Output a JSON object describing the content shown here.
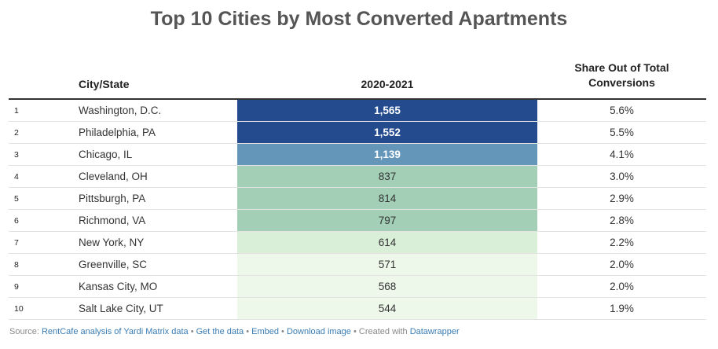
{
  "title": "Top 10 Cities by Most Converted Apartments",
  "table": {
    "headers": {
      "rank": "",
      "city": "City/State",
      "value": "2020-2021",
      "share_line1": "Share Out of Total",
      "share_line2": "Conversions"
    },
    "rows": [
      {
        "rank": "1",
        "city": "Washington, D.C.",
        "value": "1,565",
        "share": "5.6%"
      },
      {
        "rank": "2",
        "city": "Philadelphia, PA",
        "value": "1,552",
        "share": "5.5%"
      },
      {
        "rank": "3",
        "city": "Chicago, IL",
        "value": "1,139",
        "share": "4.1%"
      },
      {
        "rank": "4",
        "city": "Cleveland, OH",
        "value": "837",
        "share": "3.0%"
      },
      {
        "rank": "5",
        "city": "Pittsburgh, PA",
        "value": "814",
        "share": "2.9%"
      },
      {
        "rank": "6",
        "city": "Richmond, VA",
        "value": "797",
        "share": "2.8%"
      },
      {
        "rank": "7",
        "city": "New York, NY",
        "value": "614",
        "share": "2.2%"
      },
      {
        "rank": "8",
        "city": "Greenville, SC",
        "value": "571",
        "share": "2.0%"
      },
      {
        "rank": "9",
        "city": "Kansas City, MO",
        "value": "568",
        "share": "2.0%"
      },
      {
        "rank": "10",
        "city": "Salt Lake City, UT",
        "value": "544",
        "share": "1.9%"
      }
    ]
  },
  "chart_data": {
    "type": "table",
    "title": "Top 10 Cities by Most Converted Apartments",
    "columns": [
      "City/State",
      "2020-2021",
      "Share Out of Total Conversions"
    ],
    "categories": [
      "Washington, D.C.",
      "Philadelphia, PA",
      "Chicago, IL",
      "Cleveland, OH",
      "Pittsburgh, PA",
      "Richmond, VA",
      "New York, NY",
      "Greenville, SC",
      "Kansas City, MO",
      "Salt Lake City, UT"
    ],
    "values": [
      1565,
      1552,
      1139,
      837,
      814,
      797,
      614,
      571,
      568,
      544
    ],
    "share_percent": [
      5.6,
      5.5,
      4.1,
      3.0,
      2.9,
      2.8,
      2.2,
      2.0,
      2.0,
      1.9
    ],
    "color_bins": [
      {
        "min": 1400,
        "fill": "#244b8e",
        "text": "#ffffff"
      },
      {
        "min": 1000,
        "fill": "#6496b9",
        "text": "#ffffff"
      },
      {
        "min": 700,
        "fill": "#a2cfb6",
        "text": "#333333"
      },
      {
        "min": 600,
        "fill": "#d9efd8",
        "text": "#333333"
      },
      {
        "min": 0,
        "fill": "#edf7ea",
        "text": "#333333"
      }
    ]
  },
  "footer": {
    "source_prefix": "Source: ",
    "source_link": "RentCafe analysis of Yardi Matrix data",
    "separator": " • ",
    "get_data": "Get the data",
    "embed": "Embed",
    "download": "Download image",
    "created_with": "Created with ",
    "datawrapper": "Datawrapper"
  }
}
